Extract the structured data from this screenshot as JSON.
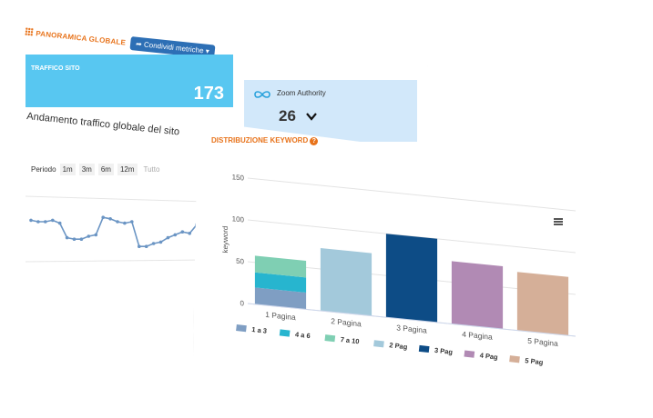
{
  "overview": {
    "title": "PANORAMICA GLOBALE",
    "share_label": "Condividi metriche",
    "traffic_tile": {
      "label": "TRAFFICO SITO",
      "value": "173"
    },
    "zoom_tile": {
      "label": "Zoom Authority",
      "value": "26"
    },
    "trend_title": "Andamento traffico globale del sito",
    "period": {
      "label": "Periodo",
      "options": [
        "1m",
        "3m",
        "6m",
        "12m",
        "Tutto"
      ]
    },
    "sparkline": [
      0.62,
      0.6,
      0.6,
      0.62,
      0.58,
      0.38,
      0.36,
      0.36,
      0.4,
      0.42,
      0.66,
      0.64,
      0.6,
      0.58,
      0.6,
      0.26,
      0.26,
      0.3,
      0.32,
      0.38,
      0.42,
      0.46,
      0.44,
      0.56,
      0.58
    ]
  },
  "keyword_dist": {
    "title": "DISTRIBUZIONE KEYWORD",
    "colors": {
      "p1_1_3": "#7f9ec3",
      "p1_4_6": "#27b5cf",
      "p1_7_10": "#7fcfb3",
      "p2": "#a3c9db",
      "p3": "#0d4c86",
      "p4": "#b18ab4",
      "p5": "#d5af98"
    }
  },
  "chart_data": {
    "type": "bar",
    "ylabel": "keyword",
    "yticks": [
      "150",
      "100",
      "50",
      "0"
    ],
    "ylim": [
      0,
      150
    ],
    "categories": [
      "1 Pagina",
      "2 Pagina",
      "3 Pagina",
      "4 Pagina",
      "5 Pagina"
    ],
    "series": [
      {
        "name": "1 a 3",
        "values": [
          20,
          0,
          0,
          0,
          0
        ]
      },
      {
        "name": "4 a 6",
        "values": [
          18,
          0,
          0,
          0,
          0
        ]
      },
      {
        "name": "7 a 10",
        "values": [
          20,
          0,
          0,
          0,
          0
        ]
      },
      {
        "name": "2 Pag",
        "values": [
          0,
          75,
          0,
          0,
          0
        ]
      },
      {
        "name": "3 Pag",
        "values": [
          0,
          0,
          100,
          0,
          0
        ]
      },
      {
        "name": "4 Pag",
        "values": [
          0,
          0,
          0,
          75,
          0
        ]
      },
      {
        "name": "5 Pag",
        "values": [
          0,
          0,
          0,
          0,
          70
        ]
      }
    ],
    "legend": "bottom"
  }
}
